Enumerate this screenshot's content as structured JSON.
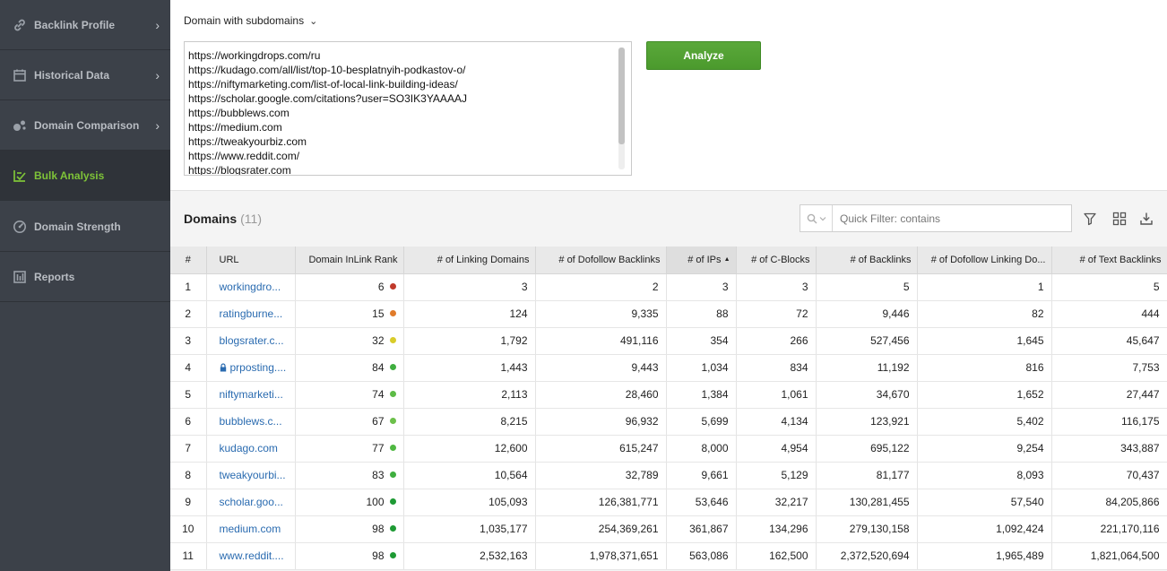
{
  "sidebar": {
    "items": [
      {
        "label": "Backlink Profile",
        "icon": "link-icon",
        "has_chevron": true,
        "active": false
      },
      {
        "label": "Historical Data",
        "icon": "calendar-icon",
        "has_chevron": true,
        "active": false
      },
      {
        "label": "Domain Comparison",
        "icon": "bubbles-icon",
        "has_chevron": true,
        "active": false
      },
      {
        "label": "Bulk Analysis",
        "icon": "bulk-list-icon",
        "has_chevron": false,
        "active": true
      },
      {
        "label": "Domain Strength",
        "icon": "gauge-icon",
        "has_chevron": false,
        "active": false
      },
      {
        "label": "Reports",
        "icon": "report-icon",
        "has_chevron": false,
        "active": false
      }
    ]
  },
  "scope": {
    "label": "Domain with subdomains"
  },
  "url_input": {
    "lines": [
      "https://workingdrops.com/ru",
      "https://kudago.com/all/list/top-10-besplatnyih-podkastov-o/",
      "https://niftymarketing.com/list-of-local-link-building-ideas/",
      "https://scholar.google.com/citations?user=SO3IK3YAAAAJ",
      "https://bubblews.com",
      "https://medium.com",
      "https://tweakyourbiz.com",
      "https://www.reddit.com/",
      "https://blogsrater.com"
    ]
  },
  "analyze_button": {
    "label": "Analyze"
  },
  "domains_panel": {
    "title": "Domains",
    "count": "(11)",
    "filter_placeholder": "Quick Filter: contains"
  },
  "table": {
    "columns": [
      "#",
      "URL",
      "Domain InLink Rank",
      "# of Linking Domains",
      "# of Dofollow Backlinks",
      "# of IPs",
      "# of C-Blocks",
      "# of Backlinks",
      "# of Dofollow Linking Do...",
      "# of Text Backlinks"
    ],
    "sorted_column_index": 5,
    "rows": [
      {
        "n": "1",
        "url": "workingdro...",
        "locked": false,
        "rank": "6",
        "rank_color": "#c0392b",
        "linking_domains": "3",
        "dofollow_backlinks": "2",
        "ips": "3",
        "cblocks": "3",
        "backlinks": "5",
        "dofollow_linking": "1",
        "text_backlinks": "5"
      },
      {
        "n": "2",
        "url": "ratingburne...",
        "locked": false,
        "rank": "15",
        "rank_color": "#e07b2a",
        "linking_domains": "124",
        "dofollow_backlinks": "9,335",
        "ips": "88",
        "cblocks": "72",
        "backlinks": "9,446",
        "dofollow_linking": "82",
        "text_backlinks": "444"
      },
      {
        "n": "3",
        "url": "blogsrater.c...",
        "locked": false,
        "rank": "32",
        "rank_color": "#d9cc2a",
        "linking_domains": "1,792",
        "dofollow_backlinks": "491,116",
        "ips": "354",
        "cblocks": "266",
        "backlinks": "527,456",
        "dofollow_linking": "1,645",
        "text_backlinks": "45,647"
      },
      {
        "n": "4",
        "url": "prposting....",
        "locked": true,
        "rank": "84",
        "rank_color": "#3fae3f",
        "linking_domains": "1,443",
        "dofollow_backlinks": "9,443",
        "ips": "1,034",
        "cblocks": "834",
        "backlinks": "11,192",
        "dofollow_linking": "816",
        "text_backlinks": "7,753"
      },
      {
        "n": "5",
        "url": "niftymarketi...",
        "locked": false,
        "rank": "74",
        "rank_color": "#5dbb46",
        "linking_domains": "2,113",
        "dofollow_backlinks": "28,460",
        "ips": "1,384",
        "cblocks": "1,061",
        "backlinks": "34,670",
        "dofollow_linking": "1,652",
        "text_backlinks": "27,447"
      },
      {
        "n": "6",
        "url": "bubblews.c...",
        "locked": false,
        "rank": "67",
        "rank_color": "#6cc04a",
        "linking_domains": "8,215",
        "dofollow_backlinks": "96,932",
        "ips": "5,699",
        "cblocks": "4,134",
        "backlinks": "123,921",
        "dofollow_linking": "5,402",
        "text_backlinks": "116,175"
      },
      {
        "n": "7",
        "url": "kudago.com",
        "locked": false,
        "rank": "77",
        "rank_color": "#4fb842",
        "linking_domains": "12,600",
        "dofollow_backlinks": "615,247",
        "ips": "8,000",
        "cblocks": "4,954",
        "backlinks": "695,122",
        "dofollow_linking": "9,254",
        "text_backlinks": "343,887"
      },
      {
        "n": "8",
        "url": "tweakyourbi...",
        "locked": false,
        "rank": "83",
        "rank_color": "#3fae3f",
        "linking_domains": "10,564",
        "dofollow_backlinks": "32,789",
        "ips": "9,661",
        "cblocks": "5,129",
        "backlinks": "81,177",
        "dofollow_linking": "8,093",
        "text_backlinks": "70,437"
      },
      {
        "n": "9",
        "url": "scholar.goo...",
        "locked": false,
        "rank": "100",
        "rank_color": "#1e9a34",
        "linking_domains": "105,093",
        "dofollow_backlinks": "126,381,771",
        "ips": "53,646",
        "cblocks": "32,217",
        "backlinks": "130,281,455",
        "dofollow_linking": "57,540",
        "text_backlinks": "84,205,866"
      },
      {
        "n": "10",
        "url": "medium.com",
        "locked": false,
        "rank": "98",
        "rank_color": "#1e9a34",
        "linking_domains": "1,035,177",
        "dofollow_backlinks": "254,369,261",
        "ips": "361,867",
        "cblocks": "134,296",
        "backlinks": "279,130,158",
        "dofollow_linking": "1,092,424",
        "text_backlinks": "221,170,116"
      },
      {
        "n": "11",
        "url": "www.reddit....",
        "locked": false,
        "rank": "98",
        "rank_color": "#1e9a34",
        "linking_domains": "2,532,163",
        "dofollow_backlinks": "1,978,371,651",
        "ips": "563,086",
        "cblocks": "162,500",
        "backlinks": "2,372,520,694",
        "dofollow_linking": "1,965,489",
        "text_backlinks": "1,821,064,500"
      }
    ]
  },
  "colors": {
    "sidebar_bg": "#3c4149",
    "sidebar_active_text": "#7ec338",
    "analyze_button": "#4f9e31",
    "link": "#2a6bb0"
  }
}
